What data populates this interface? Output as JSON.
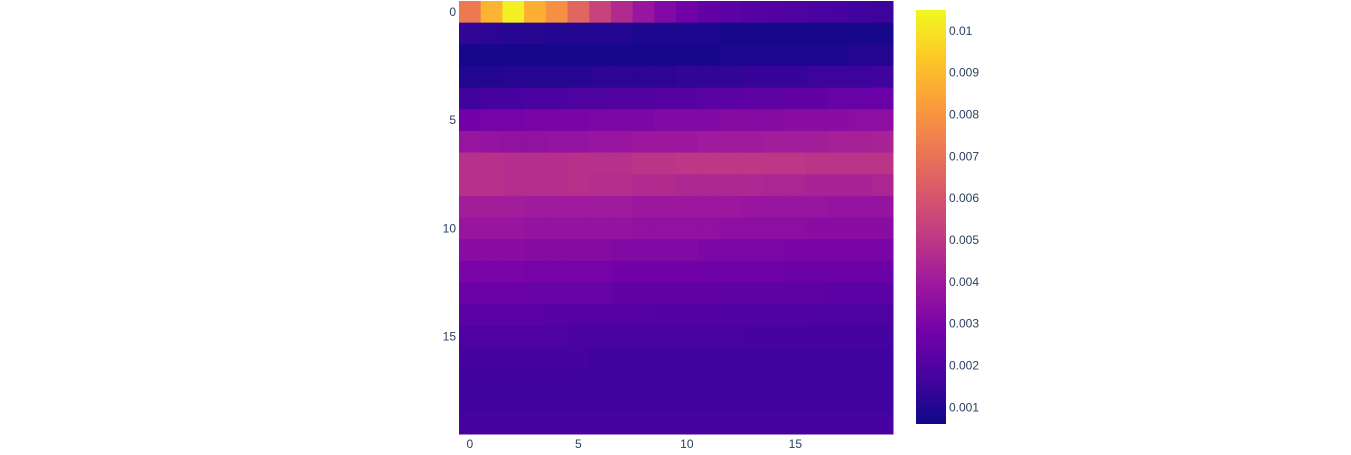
{
  "chart_data": {
    "type": "heatmap",
    "title": "",
    "xlabel": "",
    "ylabel": "",
    "x_range": [
      -0.5,
      19.5
    ],
    "y_range": [
      -0.5,
      19.5
    ],
    "y_reversed": true,
    "x_ticks": [
      "0",
      "5",
      "10",
      "15"
    ],
    "x_tick_values": [
      0,
      5,
      10,
      15
    ],
    "y_ticks": [
      "0",
      "5",
      "10",
      "15"
    ],
    "y_tick_values": [
      0,
      5,
      10,
      15
    ],
    "z_range": [
      0.0006,
      0.0105
    ],
    "colorbar": {
      "ticks": [
        "0.001",
        "0.002",
        "0.003",
        "0.004",
        "0.005",
        "0.006",
        "0.007",
        "0.008",
        "0.009",
        "0.01"
      ],
      "tick_values": [
        0.001,
        0.002,
        0.003,
        0.004,
        0.005,
        0.006,
        0.007,
        0.008,
        0.009,
        0.01
      ]
    },
    "colorscale": [
      "#0d0887",
      "#46039f",
      "#7201a8",
      "#9c179e",
      "#bd3786",
      "#d8576b",
      "#ed7953",
      "#fb9f3a",
      "#fdca26",
      "#f0f921"
    ],
    "z": [
      [
        0.0072,
        0.0088,
        0.0103,
        0.0087,
        0.0079,
        0.0066,
        0.0054,
        0.0046,
        0.0038,
        0.0032,
        0.0028,
        0.0024,
        0.0022,
        0.0021,
        0.002,
        0.0019,
        0.0018,
        0.0017,
        0.0016,
        0.0015
      ],
      [
        0.0013,
        0.0012,
        0.0011,
        0.0011,
        0.001,
        0.001,
        0.001,
        0.001,
        0.0009,
        0.0009,
        0.0009,
        0.0009,
        0.0008,
        0.0008,
        0.0008,
        0.0008,
        0.0008,
        0.0008,
        0.0008,
        0.0008
      ],
      [
        0.0008,
        0.0008,
        0.0008,
        0.0008,
        0.0008,
        0.0008,
        0.0008,
        0.0008,
        0.0008,
        0.0008,
        0.0008,
        0.0008,
        0.0009,
        0.0009,
        0.0009,
        0.0009,
        0.0009,
        0.0009,
        0.001,
        0.001
      ],
      [
        0.001,
        0.001,
        0.0011,
        0.0011,
        0.0011,
        0.0011,
        0.0012,
        0.0012,
        0.0012,
        0.0012,
        0.0013,
        0.0013,
        0.0013,
        0.0014,
        0.0014,
        0.0014,
        0.0015,
        0.0015,
        0.0015,
        0.0016
      ],
      [
        0.0016,
        0.0017,
        0.0017,
        0.0018,
        0.0018,
        0.0019,
        0.0019,
        0.002,
        0.002,
        0.0021,
        0.0021,
        0.0022,
        0.0022,
        0.0023,
        0.0023,
        0.0024,
        0.0024,
        0.0025,
        0.0025,
        0.0026
      ],
      [
        0.0028,
        0.0029,
        0.0029,
        0.003,
        0.003,
        0.003,
        0.0031,
        0.0031,
        0.0031,
        0.0032,
        0.0032,
        0.0032,
        0.0033,
        0.0033,
        0.0033,
        0.0034,
        0.0034,
        0.0034,
        0.0035,
        0.0035
      ],
      [
        0.0038,
        0.0037,
        0.0036,
        0.0036,
        0.0037,
        0.0037,
        0.0038,
        0.0038,
        0.0039,
        0.0039,
        0.0039,
        0.004,
        0.004,
        0.004,
        0.0041,
        0.0041,
        0.0041,
        0.0042,
        0.0042,
        0.0043
      ],
      [
        0.0048,
        0.0048,
        0.0047,
        0.0047,
        0.0047,
        0.0048,
        0.0048,
        0.0048,
        0.0049,
        0.0049,
        0.005,
        0.005,
        0.005,
        0.005,
        0.005,
        0.005,
        0.0049,
        0.0049,
        0.0049,
        0.0049
      ],
      [
        0.0048,
        0.0048,
        0.0047,
        0.0047,
        0.0047,
        0.0048,
        0.0047,
        0.0047,
        0.0046,
        0.0046,
        0.0045,
        0.0045,
        0.0045,
        0.0045,
        0.0044,
        0.0044,
        0.0043,
        0.0043,
        0.0043,
        0.0044
      ],
      [
        0.0041,
        0.0041,
        0.0041,
        0.004,
        0.004,
        0.004,
        0.004,
        0.004,
        0.0039,
        0.0039,
        0.0039,
        0.0039,
        0.0039,
        0.0038,
        0.0038,
        0.0038,
        0.0038,
        0.0037,
        0.0037,
        0.0037
      ],
      [
        0.0038,
        0.0038,
        0.0038,
        0.0037,
        0.0037,
        0.0037,
        0.0037,
        0.0037,
        0.0036,
        0.0036,
        0.0036,
        0.0036,
        0.0035,
        0.0035,
        0.0035,
        0.0035,
        0.0034,
        0.0034,
        0.0034,
        0.0034
      ],
      [
        0.0034,
        0.0034,
        0.0034,
        0.0033,
        0.0033,
        0.0033,
        0.0033,
        0.0032,
        0.0032,
        0.0032,
        0.0032,
        0.0031,
        0.0031,
        0.0031,
        0.0031,
        0.003,
        0.003,
        0.003,
        0.003,
        0.003
      ],
      [
        0.003,
        0.003,
        0.003,
        0.0029,
        0.0029,
        0.0029,
        0.0029,
        0.0028,
        0.0028,
        0.0028,
        0.0028,
        0.0027,
        0.0027,
        0.0027,
        0.0027,
        0.0026,
        0.0026,
        0.0026,
        0.0026,
        0.0026
      ],
      [
        0.0026,
        0.0026,
        0.0026,
        0.0025,
        0.0025,
        0.0025,
        0.0025,
        0.0024,
        0.0024,
        0.0024,
        0.0024,
        0.0024,
        0.0023,
        0.0023,
        0.0023,
        0.0023,
        0.0023,
        0.0022,
        0.0022,
        0.0022
      ],
      [
        0.0022,
        0.0022,
        0.0022,
        0.0022,
        0.0021,
        0.0021,
        0.0021,
        0.0021,
        0.0021,
        0.002,
        0.002,
        0.002,
        0.002,
        0.002,
        0.002,
        0.002,
        0.0019,
        0.0019,
        0.0019,
        0.0019
      ],
      [
        0.0019,
        0.0019,
        0.0019,
        0.0019,
        0.0019,
        0.0018,
        0.0018,
        0.0018,
        0.0018,
        0.0018,
        0.0018,
        0.0018,
        0.0018,
        0.0017,
        0.0017,
        0.0017,
        0.0017,
        0.0017,
        0.0017,
        0.0017
      ],
      [
        0.0017,
        0.0017,
        0.0017,
        0.0017,
        0.0017,
        0.0017,
        0.0016,
        0.0016,
        0.0016,
        0.0016,
        0.0016,
        0.0016,
        0.0016,
        0.0016,
        0.0016,
        0.0016,
        0.0016,
        0.0016,
        0.0016,
        0.0016
      ],
      [
        0.0016,
        0.0016,
        0.0016,
        0.0016,
        0.0016,
        0.0016,
        0.0016,
        0.0016,
        0.0016,
        0.0016,
        0.0016,
        0.0016,
        0.0016,
        0.0016,
        0.0016,
        0.0016,
        0.0016,
        0.0016,
        0.0016,
        0.0016
      ],
      [
        0.0016,
        0.0016,
        0.0016,
        0.0016,
        0.0016,
        0.0016,
        0.0016,
        0.0016,
        0.0016,
        0.0016,
        0.0016,
        0.0016,
        0.0016,
        0.0016,
        0.0016,
        0.0016,
        0.0016,
        0.0016,
        0.0016,
        0.0016
      ],
      [
        0.0017,
        0.0017,
        0.0017,
        0.0017,
        0.0017,
        0.0017,
        0.0017,
        0.0017,
        0.0017,
        0.0017,
        0.0017,
        0.0017,
        0.0017,
        0.0017,
        0.0017,
        0.0017,
        0.0017,
        0.0017,
        0.0017,
        0.0017
      ]
    ]
  }
}
